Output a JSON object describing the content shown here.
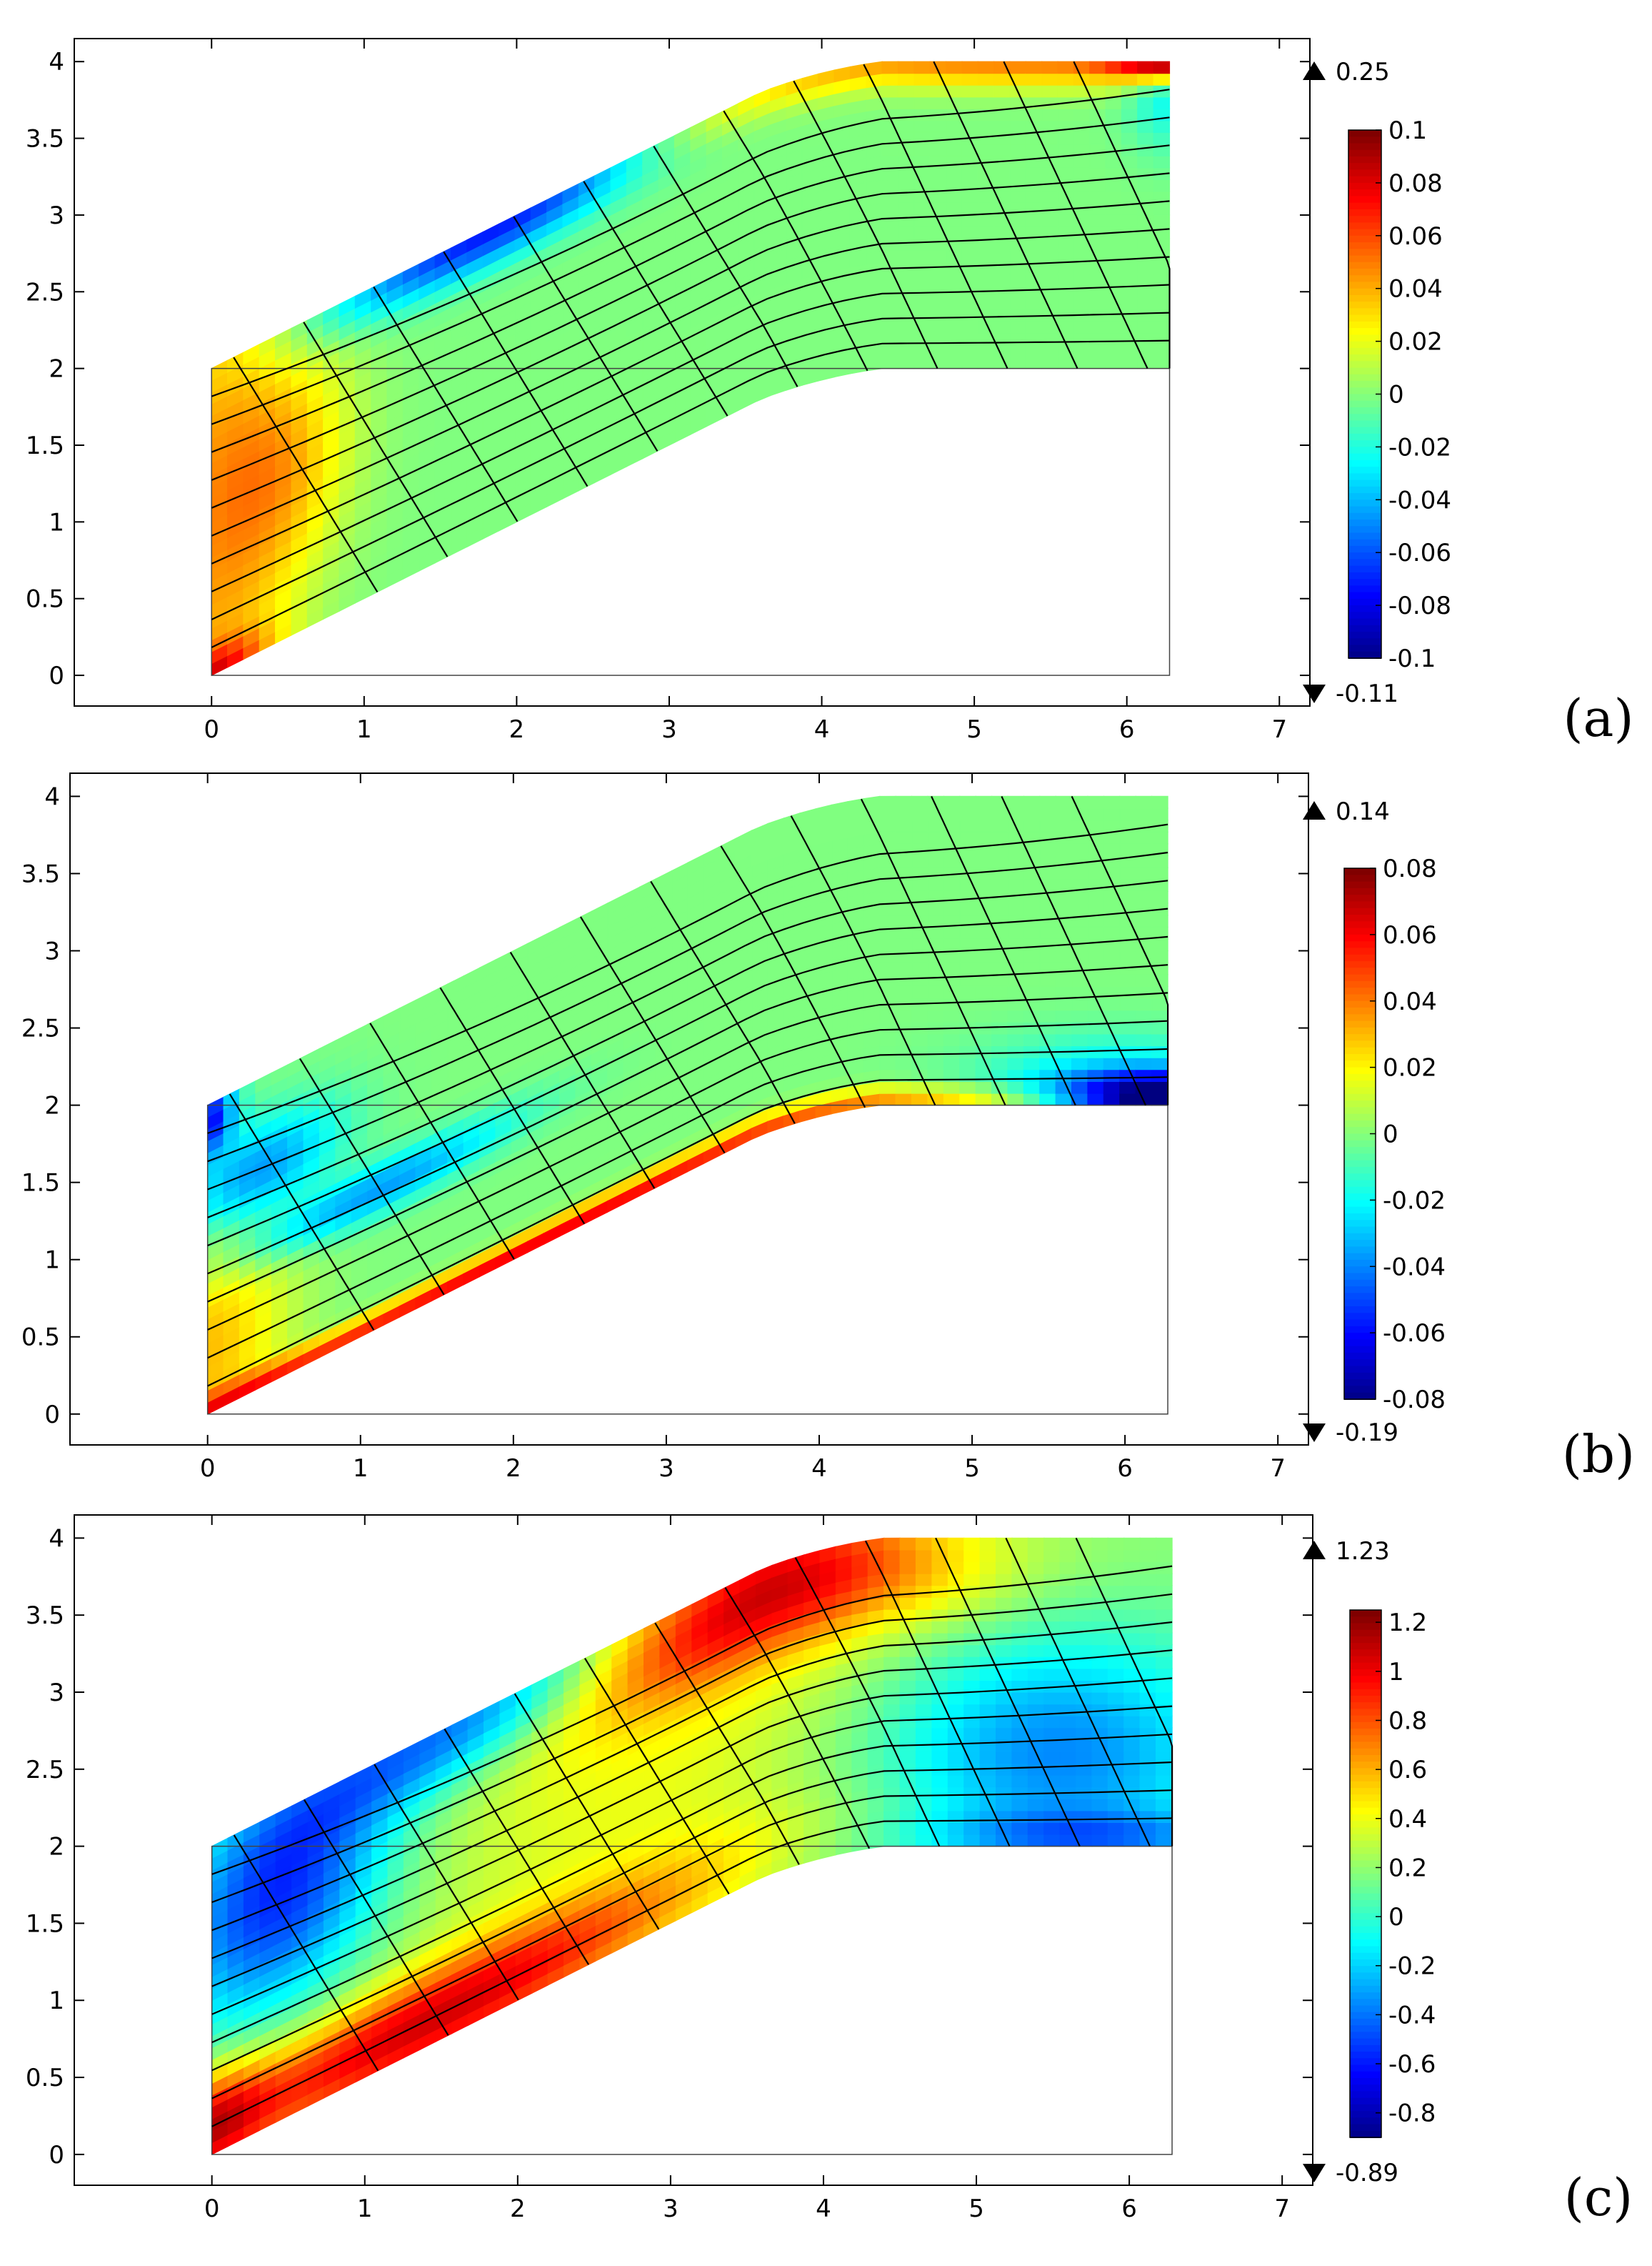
{
  "figure_title": "",
  "chart_data": [
    {
      "type": "heatmap",
      "panel_label": "(a)",
      "title": "",
      "xlabel": "",
      "ylabel": "",
      "xlim": [
        -0.9,
        7.2
      ],
      "ylim": [
        -0.2,
        4.15
      ],
      "x_ticks": [
        "0",
        "1",
        "2",
        "3",
        "4",
        "5",
        "6",
        "7"
      ],
      "y_ticks": [
        "0",
        "0.5",
        "1",
        "1.5",
        "2",
        "2.5",
        "3",
        "3.5",
        "4"
      ],
      "domain": {
        "x_max": 6.28,
        "slope_end_x": 4.0,
        "y_height": 2.0
      },
      "colorbar": {
        "max_marker": "0.25",
        "min_marker": "-0.11",
        "range": [
          -0.1,
          0.1
        ],
        "ticks": [
          "0.1",
          "0.08",
          "0.06",
          "0.04",
          "0.02",
          "0",
          "-0.02",
          "-0.04",
          "-0.06",
          "-0.08",
          "-0.1"
        ]
      },
      "field": {
        "base": 0.0,
        "features": [
          {
            "u": 0.0,
            "v": 0.5,
            "su": 0.06,
            "sv": 0.9,
            "amp": 0.04,
            "note": "left edge ridge"
          },
          {
            "u": 0.08,
            "v": 0.55,
            "su": 0.05,
            "sv": 0.25,
            "amp": 0.03,
            "note": "diagonal band"
          },
          {
            "u": 0.3,
            "v": 1.0,
            "su": 0.12,
            "sv": 0.08,
            "amp": -0.08,
            "note": "top low near x=1"
          },
          {
            "u": 0.85,
            "v": 1.0,
            "su": 0.3,
            "sv": 0.06,
            "amp": 0.05,
            "note": "top right edge"
          },
          {
            "u": 1.0,
            "v": 1.0,
            "su": 0.04,
            "sv": 0.04,
            "amp": 0.08,
            "note": "corner peak"
          },
          {
            "u": 1.0,
            "v": 0.95,
            "su": 0.03,
            "sv": 0.15,
            "amp": -0.03,
            "note": "right edge"
          },
          {
            "u": 0.0,
            "v": 0.0,
            "su": 0.04,
            "sv": 0.06,
            "amp": 0.05,
            "note": "bottom-left corner"
          }
        ]
      }
    },
    {
      "type": "heatmap",
      "panel_label": "(b)",
      "title": "",
      "xlabel": "",
      "ylabel": "",
      "xlim": [
        -0.9,
        7.2
      ],
      "ylim": [
        -0.2,
        4.15
      ],
      "x_ticks": [
        "0",
        "1",
        "2",
        "3",
        "4",
        "5",
        "6",
        "7"
      ],
      "y_ticks": [
        "0",
        "0.5",
        "1",
        "1.5",
        "2",
        "2.5",
        "3",
        "3.5",
        "4"
      ],
      "domain": {
        "x_max": 6.28,
        "slope_end_x": 4.0,
        "y_height": 2.0
      },
      "colorbar": {
        "max_marker": "0.14",
        "min_marker": "-0.19",
        "range": [
          -0.08,
          0.08
        ],
        "ticks": [
          "0.08",
          "0.06",
          "0.04",
          "0.02",
          "0",
          "-0.02",
          "-0.04",
          "-0.06",
          "-0.08"
        ]
      },
      "field": {
        "base": 0.0,
        "features": [
          {
            "u": 0.0,
            "v": 0.2,
            "su": 0.06,
            "sv": 0.3,
            "amp": 0.03,
            "note": "left edge bottom"
          },
          {
            "u": 0.05,
            "v": 0.7,
            "su": 0.06,
            "sv": 0.12,
            "amp": -0.04,
            "note": "cyan band"
          },
          {
            "u": 0.18,
            "v": 0.45,
            "su": 0.1,
            "sv": 0.06,
            "amp": -0.035,
            "note": "cyan curve"
          },
          {
            "u": 0.0,
            "v": 0.95,
            "su": 0.02,
            "sv": 0.08,
            "amp": -0.06,
            "note": "top-left corner"
          },
          {
            "u": 0.35,
            "v": 0.02,
            "su": 0.35,
            "sv": 0.03,
            "amp": 0.06,
            "note": "bottom edge ridge"
          },
          {
            "u": 1.0,
            "v": 0.02,
            "su": 0.08,
            "sv": 0.06,
            "amp": -0.09,
            "note": "bottom-right corner"
          },
          {
            "u": 0.95,
            "v": 0.1,
            "su": 0.1,
            "sv": 0.1,
            "amp": -0.02,
            "note": "right cyan"
          }
        ]
      }
    },
    {
      "type": "heatmap",
      "panel_label": "(c)",
      "title": "",
      "xlabel": "",
      "ylabel": "",
      "xlim": [
        -0.9,
        7.2
      ],
      "ylim": [
        -0.2,
        4.15
      ],
      "x_ticks": [
        "0",
        "1",
        "2",
        "3",
        "4",
        "5",
        "6",
        "7"
      ],
      "y_ticks": [
        "0",
        "0.5",
        "1",
        "1.5",
        "2",
        "2.5",
        "3",
        "3.5",
        "4"
      ],
      "domain": {
        "x_max": 6.28,
        "slope_end_x": 4.0,
        "y_height": 2.0
      },
      "colorbar": {
        "max_marker": "1.23",
        "min_marker": "-0.89",
        "range": [
          -0.9,
          1.25
        ],
        "ticks": [
          "1.2",
          "1",
          "0.8",
          "0.6",
          "0.4",
          "0.2",
          "0",
          "-0.2",
          "-0.4",
          "-0.6",
          "-0.8"
        ]
      },
      "field": {
        "base": 0.2,
        "features": [
          {
            "u": 0.07,
            "v": 0.72,
            "su": 0.08,
            "sv": 0.25,
            "amp": -0.75,
            "note": "left blue region"
          },
          {
            "u": 0.25,
            "v": 0.98,
            "su": 0.12,
            "sv": 0.12,
            "amp": -0.6,
            "note": "top blue near x=1.5"
          },
          {
            "u": 0.22,
            "v": 0.08,
            "su": 0.2,
            "sv": 0.12,
            "amp": 0.85,
            "note": "bottom orange band"
          },
          {
            "u": 0.58,
            "v": 0.92,
            "su": 0.14,
            "sv": 0.15,
            "amp": 0.85,
            "note": "top orange band"
          },
          {
            "u": 0.45,
            "v": 0.5,
            "su": 0.18,
            "sv": 0.3,
            "amp": 0.2,
            "note": "middle yellow"
          },
          {
            "u": 0.88,
            "v": 0.3,
            "su": 0.13,
            "sv": 0.28,
            "amp": -0.55,
            "note": "right blue region"
          },
          {
            "u": 0.92,
            "v": 0.03,
            "su": 0.12,
            "sv": 0.06,
            "amp": -0.35,
            "note": "bottom-right blue"
          },
          {
            "u": 0.0,
            "v": 0.1,
            "su": 0.04,
            "sv": 0.12,
            "amp": 0.5,
            "note": "bottom-left yellow"
          }
        ]
      }
    }
  ]
}
